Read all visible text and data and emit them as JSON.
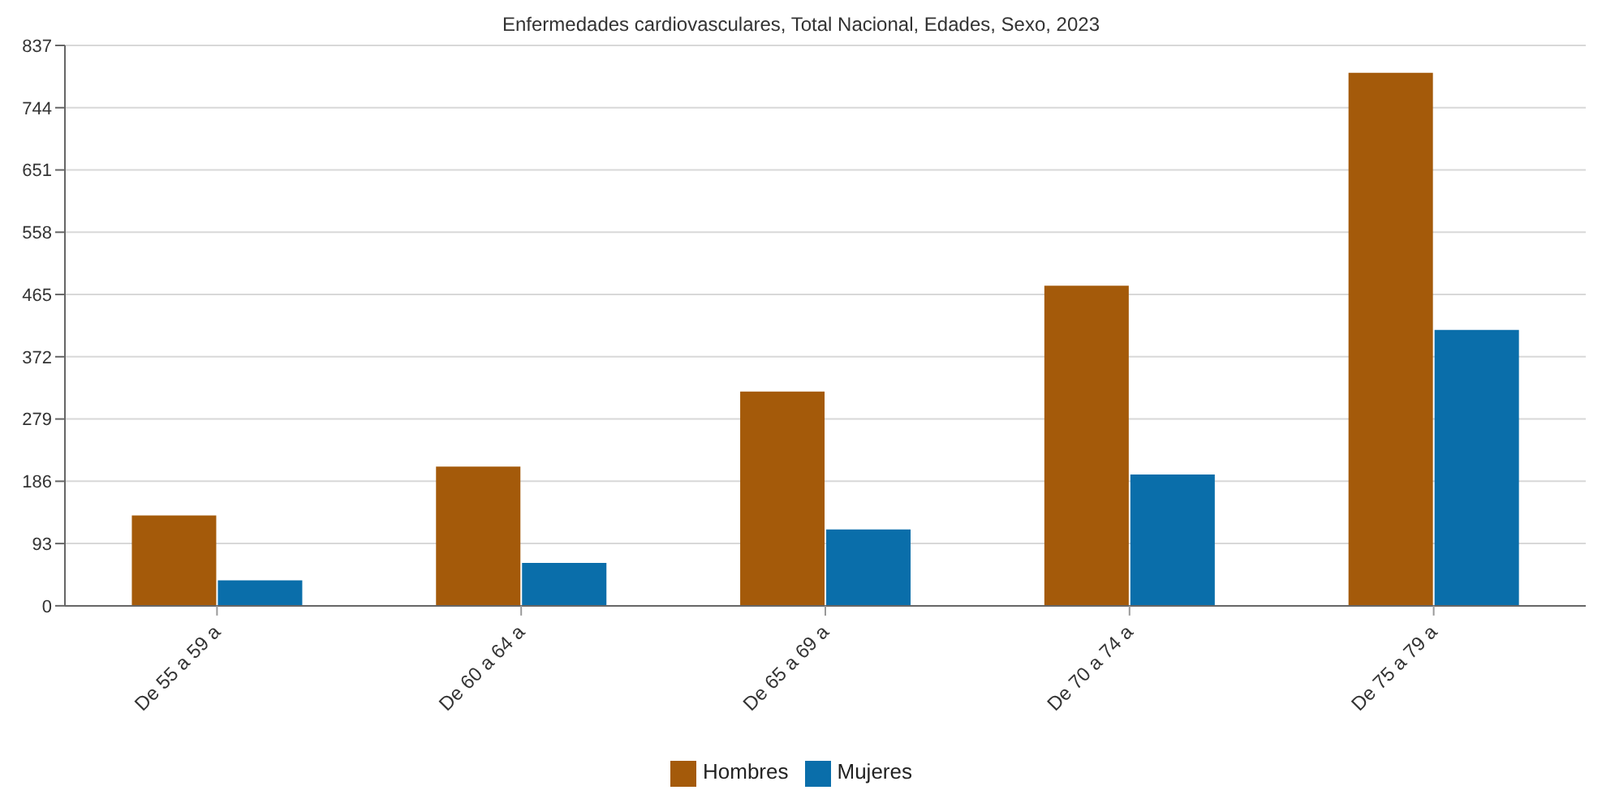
{
  "chart_data": {
    "type": "bar",
    "title": "Enfermedades cardiovasculares, Total Nacional, Edades, Sexo, 2023",
    "categories": [
      "De 55 a 59 a",
      "De 60 a 64 a",
      "De 65 a 69 a",
      "De 70 a 74 a",
      "De 75 a 79 a"
    ],
    "series": [
      {
        "name": "Hombres",
        "color": "#a45a0a",
        "values": [
          135,
          208,
          320,
          478,
          796
        ]
      },
      {
        "name": "Mujeres",
        "color": "#0a6eaa",
        "values": [
          38,
          64,
          114,
          196,
          412
        ]
      }
    ],
    "ylim": [
      0,
      837
    ],
    "yticks": [
      0,
      93,
      186,
      279,
      372,
      465,
      558,
      651,
      744,
      837
    ],
    "grid": "y",
    "legend": "bottom"
  }
}
